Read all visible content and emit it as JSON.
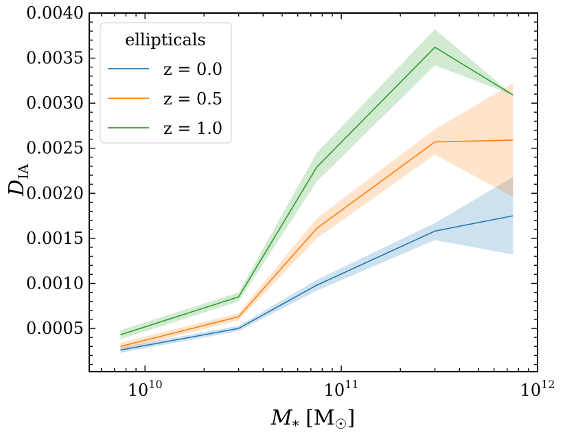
{
  "chart_data": {
    "type": "line",
    "title": "",
    "xlabel": "M* [M☉]",
    "ylabel": "D_IA",
    "xscale": "log",
    "xlim": [
      5200000000.0,
      1000000000000.0
    ],
    "ylim": [
      2e-05,
      0.004
    ],
    "xticks": [
      {
        "value": 10000000000.0,
        "base": "10",
        "exp": "10"
      },
      {
        "value": 100000000000.0,
        "base": "10",
        "exp": "11"
      },
      {
        "value": 1000000000000.0,
        "base": "10",
        "exp": "12"
      }
    ],
    "yticks": [
      {
        "value": 0.0005,
        "label": "0.0005"
      },
      {
        "value": 0.001,
        "label": "0.0010"
      },
      {
        "value": 0.0015,
        "label": "0.0015"
      },
      {
        "value": 0.002,
        "label": "0.0020"
      },
      {
        "value": 0.0025,
        "label": "0.0025"
      },
      {
        "value": 0.003,
        "label": "0.0030"
      },
      {
        "value": 0.0035,
        "label": "0.0035"
      },
      {
        "value": 0.004,
        "label": "0.0040"
      }
    ],
    "x": [
      7500000000.0,
      30000000000.0,
      75000000000.0,
      300000000000.0,
      750000000000.0
    ],
    "series": [
      {
        "name": "z = 0.0",
        "color": "#1f77b4",
        "values": [
          0.00026,
          0.0005,
          0.00098,
          0.00158,
          0.00175
        ],
        "lower": [
          0.00023,
          0.00047,
          0.00092,
          0.00148,
          0.00132
        ],
        "upper": [
          0.00029,
          0.00053,
          0.00104,
          0.00167,
          0.00218
        ]
      },
      {
        "name": "z = 0.5",
        "color": "#ff7f0e",
        "values": [
          0.0003,
          0.00063,
          0.00161,
          0.00257,
          0.00259
        ],
        "lower": [
          0.00026,
          0.00059,
          0.0015,
          0.00243,
          0.00196
        ],
        "upper": [
          0.00034,
          0.00067,
          0.00172,
          0.00271,
          0.00322
        ]
      },
      {
        "name": "z = 1.0",
        "color": "#2ca02c",
        "values": [
          0.00043,
          0.00085,
          0.00229,
          0.00362,
          0.00309
        ],
        "lower": [
          0.00038,
          0.0008,
          0.00213,
          0.00342,
          0.00309
        ],
        "upper": [
          0.00048,
          0.0009,
          0.00245,
          0.00382,
          0.00309
        ]
      }
    ],
    "legend": {
      "title": "ellipticals",
      "position": "top-left"
    },
    "grid": false
  }
}
